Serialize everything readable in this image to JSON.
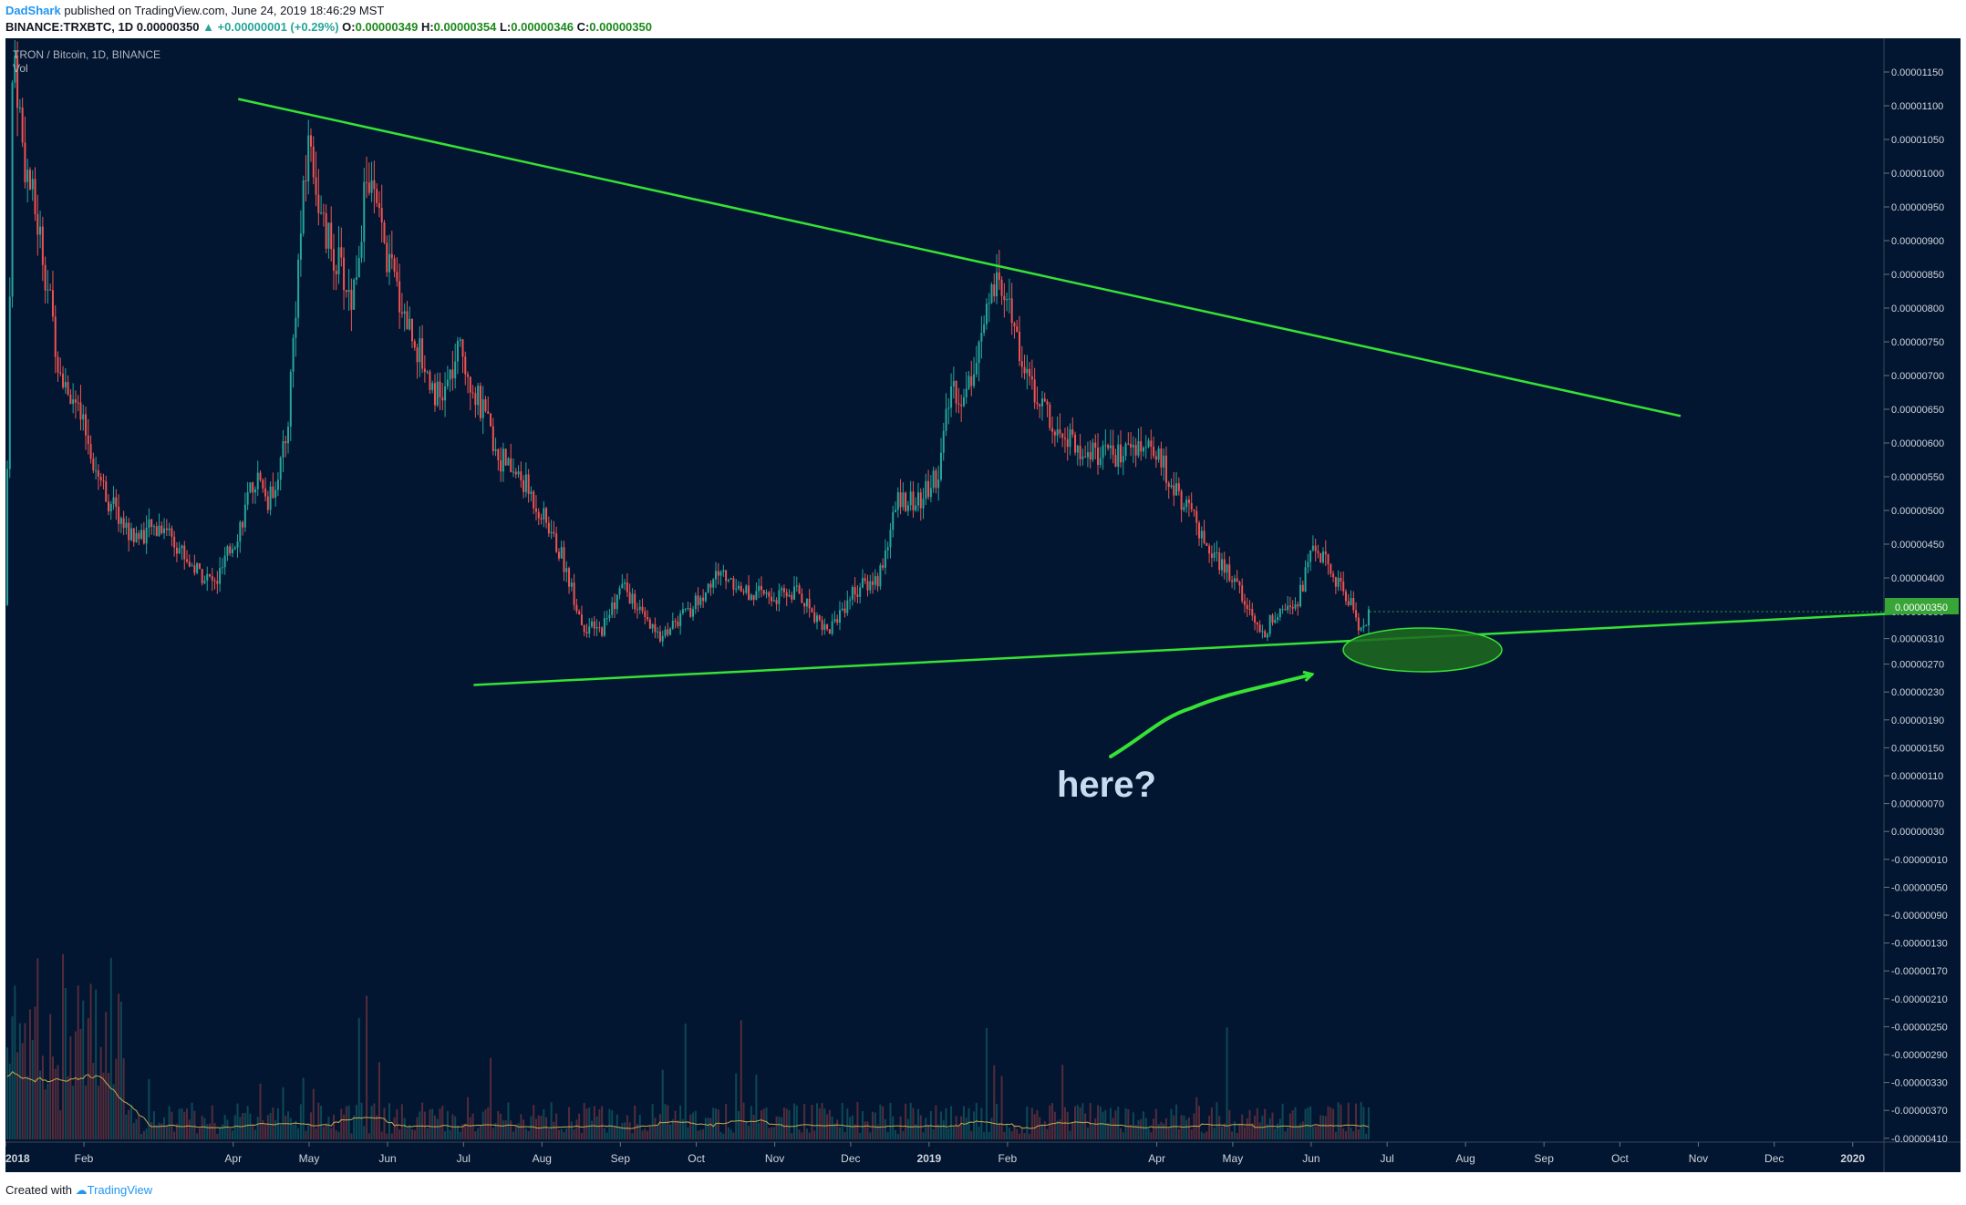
{
  "header": {
    "author": "DadShark",
    "published": "published on TradingView.com, June 24, 2019 18:46:29 MST",
    "symbol": "BINANCE:TRXBTC, 1D",
    "last": "0.00000350",
    "change": "▲ +0.00000001 (+0.29%)",
    "o_label": "O:",
    "o": "0.00000349",
    "h_label": "H:",
    "h": "0.00000354",
    "l_label": "L:",
    "l": "0.00000346",
    "c_label": "C:",
    "c": "0.00000350"
  },
  "legend": {
    "title": "TRON / Bitcoin, 1D, BINANCE",
    "vol": "Vol"
  },
  "annotation": {
    "text": "here?"
  },
  "price_badge": "0.00000350",
  "footer": {
    "created": "Created with",
    "brand": "TradingView"
  },
  "colors": {
    "background": "#021631",
    "up": "#26a69a",
    "down": "#ef5350",
    "trendline": "#36e236",
    "annotation": "#c8dcf0"
  },
  "chart_data": {
    "type": "candlestick",
    "title": "TRON / Bitcoin, 1D, BINANCE",
    "x_ticks": [
      "2018",
      "Feb",
      "Apr",
      "May",
      "Jun",
      "Jul",
      "Aug",
      "Sep",
      "Oct",
      "Nov",
      "Dec",
      "2019",
      "Feb",
      "Apr",
      "May",
      "Jun",
      "Jul",
      "Aug",
      "Sep",
      "Oct",
      "Nov",
      "Dec",
      "2020"
    ],
    "y_ticks": [
      "0.00001150",
      "0.00001100",
      "0.00001050",
      "0.00001000",
      "0.00000950",
      "0.00000900",
      "0.00000850",
      "0.00000800",
      "0.00000750",
      "0.00000700",
      "0.00000650",
      "0.00000600",
      "0.00000550",
      "0.00000500",
      "0.00000450",
      "0.00000400",
      "0.00000350",
      "0.00000310",
      "0.00000270",
      "0.00000230",
      "0.00000190",
      "0.00000150",
      "0.00000110",
      "0.00000070",
      "0.00000030",
      "-0.00000010",
      "-0.00000050",
      "-0.00000090",
      "-0.00000130",
      "-0.00000170",
      "-0.00000210",
      "-0.00000250",
      "-0.00000290",
      "-0.00000330",
      "-0.00000370",
      "-0.00000410"
    ],
    "price_path": [
      {
        "x": "2018-01-01",
        "y": 3.6e-06
      },
      {
        "x": "2018-01-04",
        "y": 1.2e-05
      },
      {
        "x": "2018-01-08",
        "y": 1.03e-05
      },
      {
        "x": "2018-01-15",
        "y": 9e-06
      },
      {
        "x": "2018-01-22",
        "y": 7.2e-06
      },
      {
        "x": "2018-01-31",
        "y": 6.3e-06
      },
      {
        "x": "2018-02-10",
        "y": 5.2e-06
      },
      {
        "x": "2018-02-20",
        "y": 4.6e-06
      },
      {
        "x": "2018-03-05",
        "y": 4.8e-06
      },
      {
        "x": "2018-03-15",
        "y": 4.2e-06
      },
      {
        "x": "2018-03-25",
        "y": 3.9e-06
      },
      {
        "x": "2018-04-03",
        "y": 4.7e-06
      },
      {
        "x": "2018-04-10",
        "y": 5.5e-06
      },
      {
        "x": "2018-04-15",
        "y": 5.1e-06
      },
      {
        "x": "2018-04-22",
        "y": 6e-06
      },
      {
        "x": "2018-04-27",
        "y": 8.8e-06
      },
      {
        "x": "2018-05-01",
        "y": 1.06e-05
      },
      {
        "x": "2018-05-06",
        "y": 9.2e-06
      },
      {
        "x": "2018-05-12",
        "y": 8.7e-06
      },
      {
        "x": "2018-05-18",
        "y": 8.1e-06
      },
      {
        "x": "2018-05-24",
        "y": 1e-05
      },
      {
        "x": "2018-06-01",
        "y": 8.7e-06
      },
      {
        "x": "2018-06-08",
        "y": 7.9e-06
      },
      {
        "x": "2018-06-15",
        "y": 7.2e-06
      },
      {
        "x": "2018-06-22",
        "y": 6.6e-06
      },
      {
        "x": "2018-06-30",
        "y": 7.4e-06
      },
      {
        "x": "2018-07-07",
        "y": 6.6e-06
      },
      {
        "x": "2018-07-15",
        "y": 5.8e-06
      },
      {
        "x": "2018-07-25",
        "y": 5.4e-06
      },
      {
        "x": "2018-08-03",
        "y": 4.8e-06
      },
      {
        "x": "2018-08-10",
        "y": 4.2e-06
      },
      {
        "x": "2018-08-17",
        "y": 3.3e-06
      },
      {
        "x": "2018-08-24",
        "y": 3.2e-06
      },
      {
        "x": "2018-09-02",
        "y": 3.9e-06
      },
      {
        "x": "2018-09-10",
        "y": 3.4e-06
      },
      {
        "x": "2018-09-16",
        "y": 3.1e-06
      },
      {
        "x": "2018-09-25",
        "y": 3.4e-06
      },
      {
        "x": "2018-10-03",
        "y": 3.7e-06
      },
      {
        "x": "2018-10-10",
        "y": 4.1e-06
      },
      {
        "x": "2018-10-20",
        "y": 3.8e-06
      },
      {
        "x": "2018-11-01",
        "y": 3.7e-06
      },
      {
        "x": "2018-11-10",
        "y": 3.8e-06
      },
      {
        "x": "2018-11-22",
        "y": 3.2e-06
      },
      {
        "x": "2018-12-02",
        "y": 3.8e-06
      },
      {
        "x": "2018-12-12",
        "y": 4e-06
      },
      {
        "x": "2018-12-20",
        "y": 5.2e-06
      },
      {
        "x": "2018-12-28",
        "y": 5.1e-06
      },
      {
        "x": "2019-01-05",
        "y": 5.6e-06
      },
      {
        "x": "2019-01-10",
        "y": 6.9e-06
      },
      {
        "x": "2019-01-15",
        "y": 6.6e-06
      },
      {
        "x": "2019-01-20",
        "y": 7.4e-06
      },
      {
        "x": "2019-01-27",
        "y": 8.3e-06
      },
      {
        "x": "2019-02-03",
        "y": 7.8e-06
      },
      {
        "x": "2019-02-10",
        "y": 6.8e-06
      },
      {
        "x": "2019-02-20",
        "y": 6.3e-06
      },
      {
        "x": "2019-03-01",
        "y": 5.9e-06
      },
      {
        "x": "2019-03-15",
        "y": 5.8e-06
      },
      {
        "x": "2019-03-25",
        "y": 6e-06
      },
      {
        "x": "2019-04-03",
        "y": 5.7e-06
      },
      {
        "x": "2019-04-12",
        "y": 5.1e-06
      },
      {
        "x": "2019-04-22",
        "y": 4.4e-06
      },
      {
        "x": "2019-05-01",
        "y": 4e-06
      },
      {
        "x": "2019-05-07",
        "y": 3.6e-06
      },
      {
        "x": "2019-05-12",
        "y": 3.1e-06
      },
      {
        "x": "2019-05-20",
        "y": 3.6e-06
      },
      {
        "x": "2019-05-27",
        "y": 3.7e-06
      },
      {
        "x": "2019-06-02",
        "y": 4.5e-06
      },
      {
        "x": "2019-06-10",
        "y": 4e-06
      },
      {
        "x": "2019-06-17",
        "y": 3.6e-06
      },
      {
        "x": "2019-06-21",
        "y": 3.2e-06
      },
      {
        "x": "2019-06-24",
        "y": 3.5e-06
      }
    ],
    "trendlines": [
      {
        "name": "upper",
        "from": {
          "x": "2018-04-03",
          "y": 1.11e-05
        },
        "to": {
          "x": "2019-10-25",
          "y": 6.4e-06
        }
      },
      {
        "name": "lower",
        "from": {
          "x": "2018-07-05",
          "y": 2.4e-06
        },
        "to": {
          "x": "2020-02-01",
          "y": 3.5e-06
        }
      }
    ],
    "volume_note": "volume histogram with moving average, no axis values shown",
    "last_price": 3.5e-06
  }
}
